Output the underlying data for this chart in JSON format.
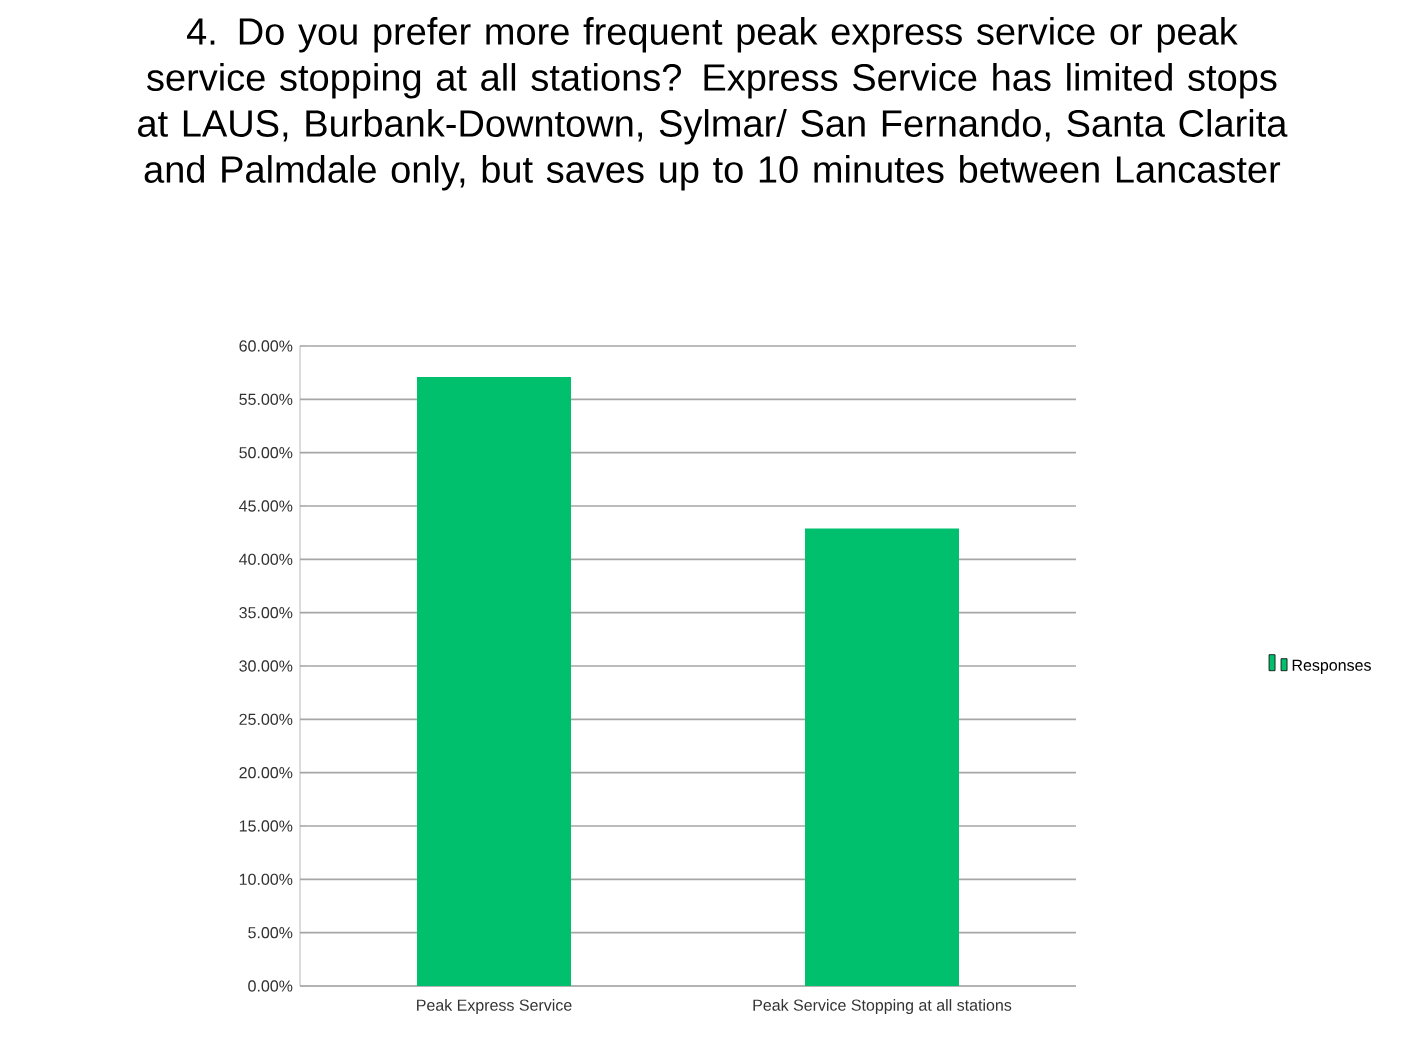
{
  "chart_data": {
    "type": "bar",
    "title": "4. Do you prefer more frequent peak express service or peak service stopping at all stations? Express Service has limited stops at LAUS, Burbank-Downtown, Sylmar/ San Fernando, Santa Clarita and Palmdale only, but saves up to 10 minutes between Lancaster",
    "categories": [
      "Peak Express Service",
      "Peak Service Stopping at all stations"
    ],
    "series": [
      {
        "name": "Responses",
        "color": "#00c06e",
        "values": [
          57.1,
          42.9
        ]
      }
    ],
    "ylim": [
      0,
      60
    ],
    "yticks": [
      {
        "value": 0,
        "label": "0.00%"
      },
      {
        "value": 5,
        "label": "5.00%"
      },
      {
        "value": 10,
        "label": "10.00%"
      },
      {
        "value": 15,
        "label": "15.00%"
      },
      {
        "value": 20,
        "label": "20.00%"
      },
      {
        "value": 25,
        "label": "25.00%"
      },
      {
        "value": 30,
        "label": "30.00%"
      },
      {
        "value": 35,
        "label": "35.00%"
      },
      {
        "value": 40,
        "label": "40.00%"
      },
      {
        "value": 45,
        "label": "45.00%"
      },
      {
        "value": 50,
        "label": "50.00%"
      },
      {
        "value": 55,
        "label": "55.00%"
      },
      {
        "value": 60,
        "label": "60.00%"
      }
    ],
    "grid": "y",
    "legend": "right"
  }
}
